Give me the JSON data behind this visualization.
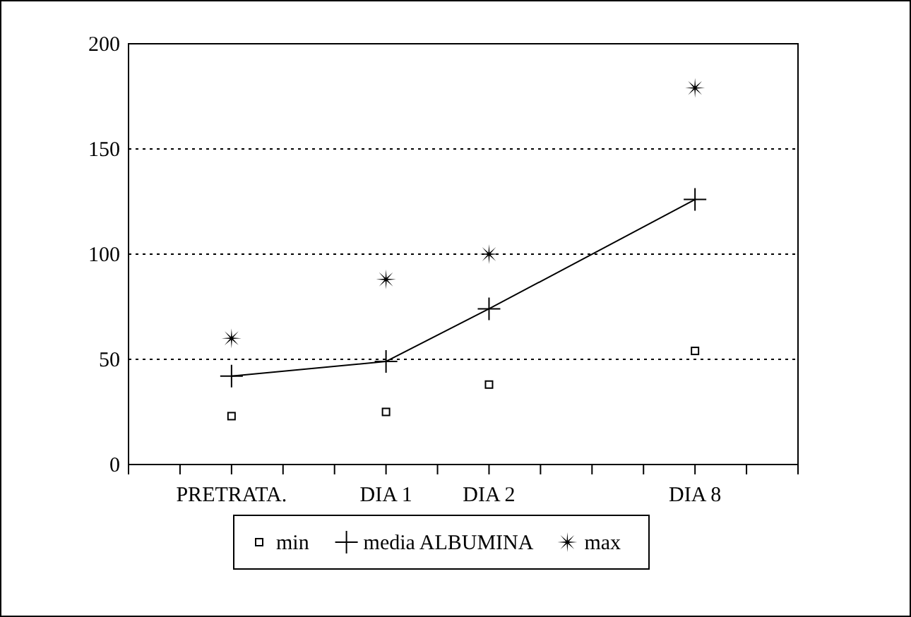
{
  "chart_data": {
    "type": "line",
    "categories": [
      null,
      null,
      "PRETRATA.",
      null,
      null,
      "DIA 1",
      null,
      "DIA 2",
      null,
      null,
      null,
      "DIA 8",
      null,
      null
    ],
    "ylim": [
      0,
      200
    ],
    "yticks": [
      0,
      50,
      100,
      150,
      200
    ],
    "grid": "y",
    "legend": "bottom",
    "series": [
      {
        "name": "min",
        "type": "scatter",
        "marker": "square",
        "color": "#000000",
        "values": [
          null,
          null,
          23,
          null,
          null,
          25,
          null,
          38,
          null,
          null,
          null,
          54,
          null,
          null
        ]
      },
      {
        "name": "media ALBUMINA",
        "marker": "cross",
        "color": "#000000",
        "values": [
          null,
          null,
          42,
          null,
          null,
          49,
          null,
          74,
          null,
          null,
          null,
          126,
          null,
          null
        ]
      },
      {
        "name": "max",
        "type": "scatter",
        "marker": "star",
        "color": "#000000",
        "values": [
          null,
          null,
          60,
          null,
          null,
          88,
          null,
          100,
          null,
          null,
          null,
          179,
          null,
          null
        ]
      }
    ]
  }
}
